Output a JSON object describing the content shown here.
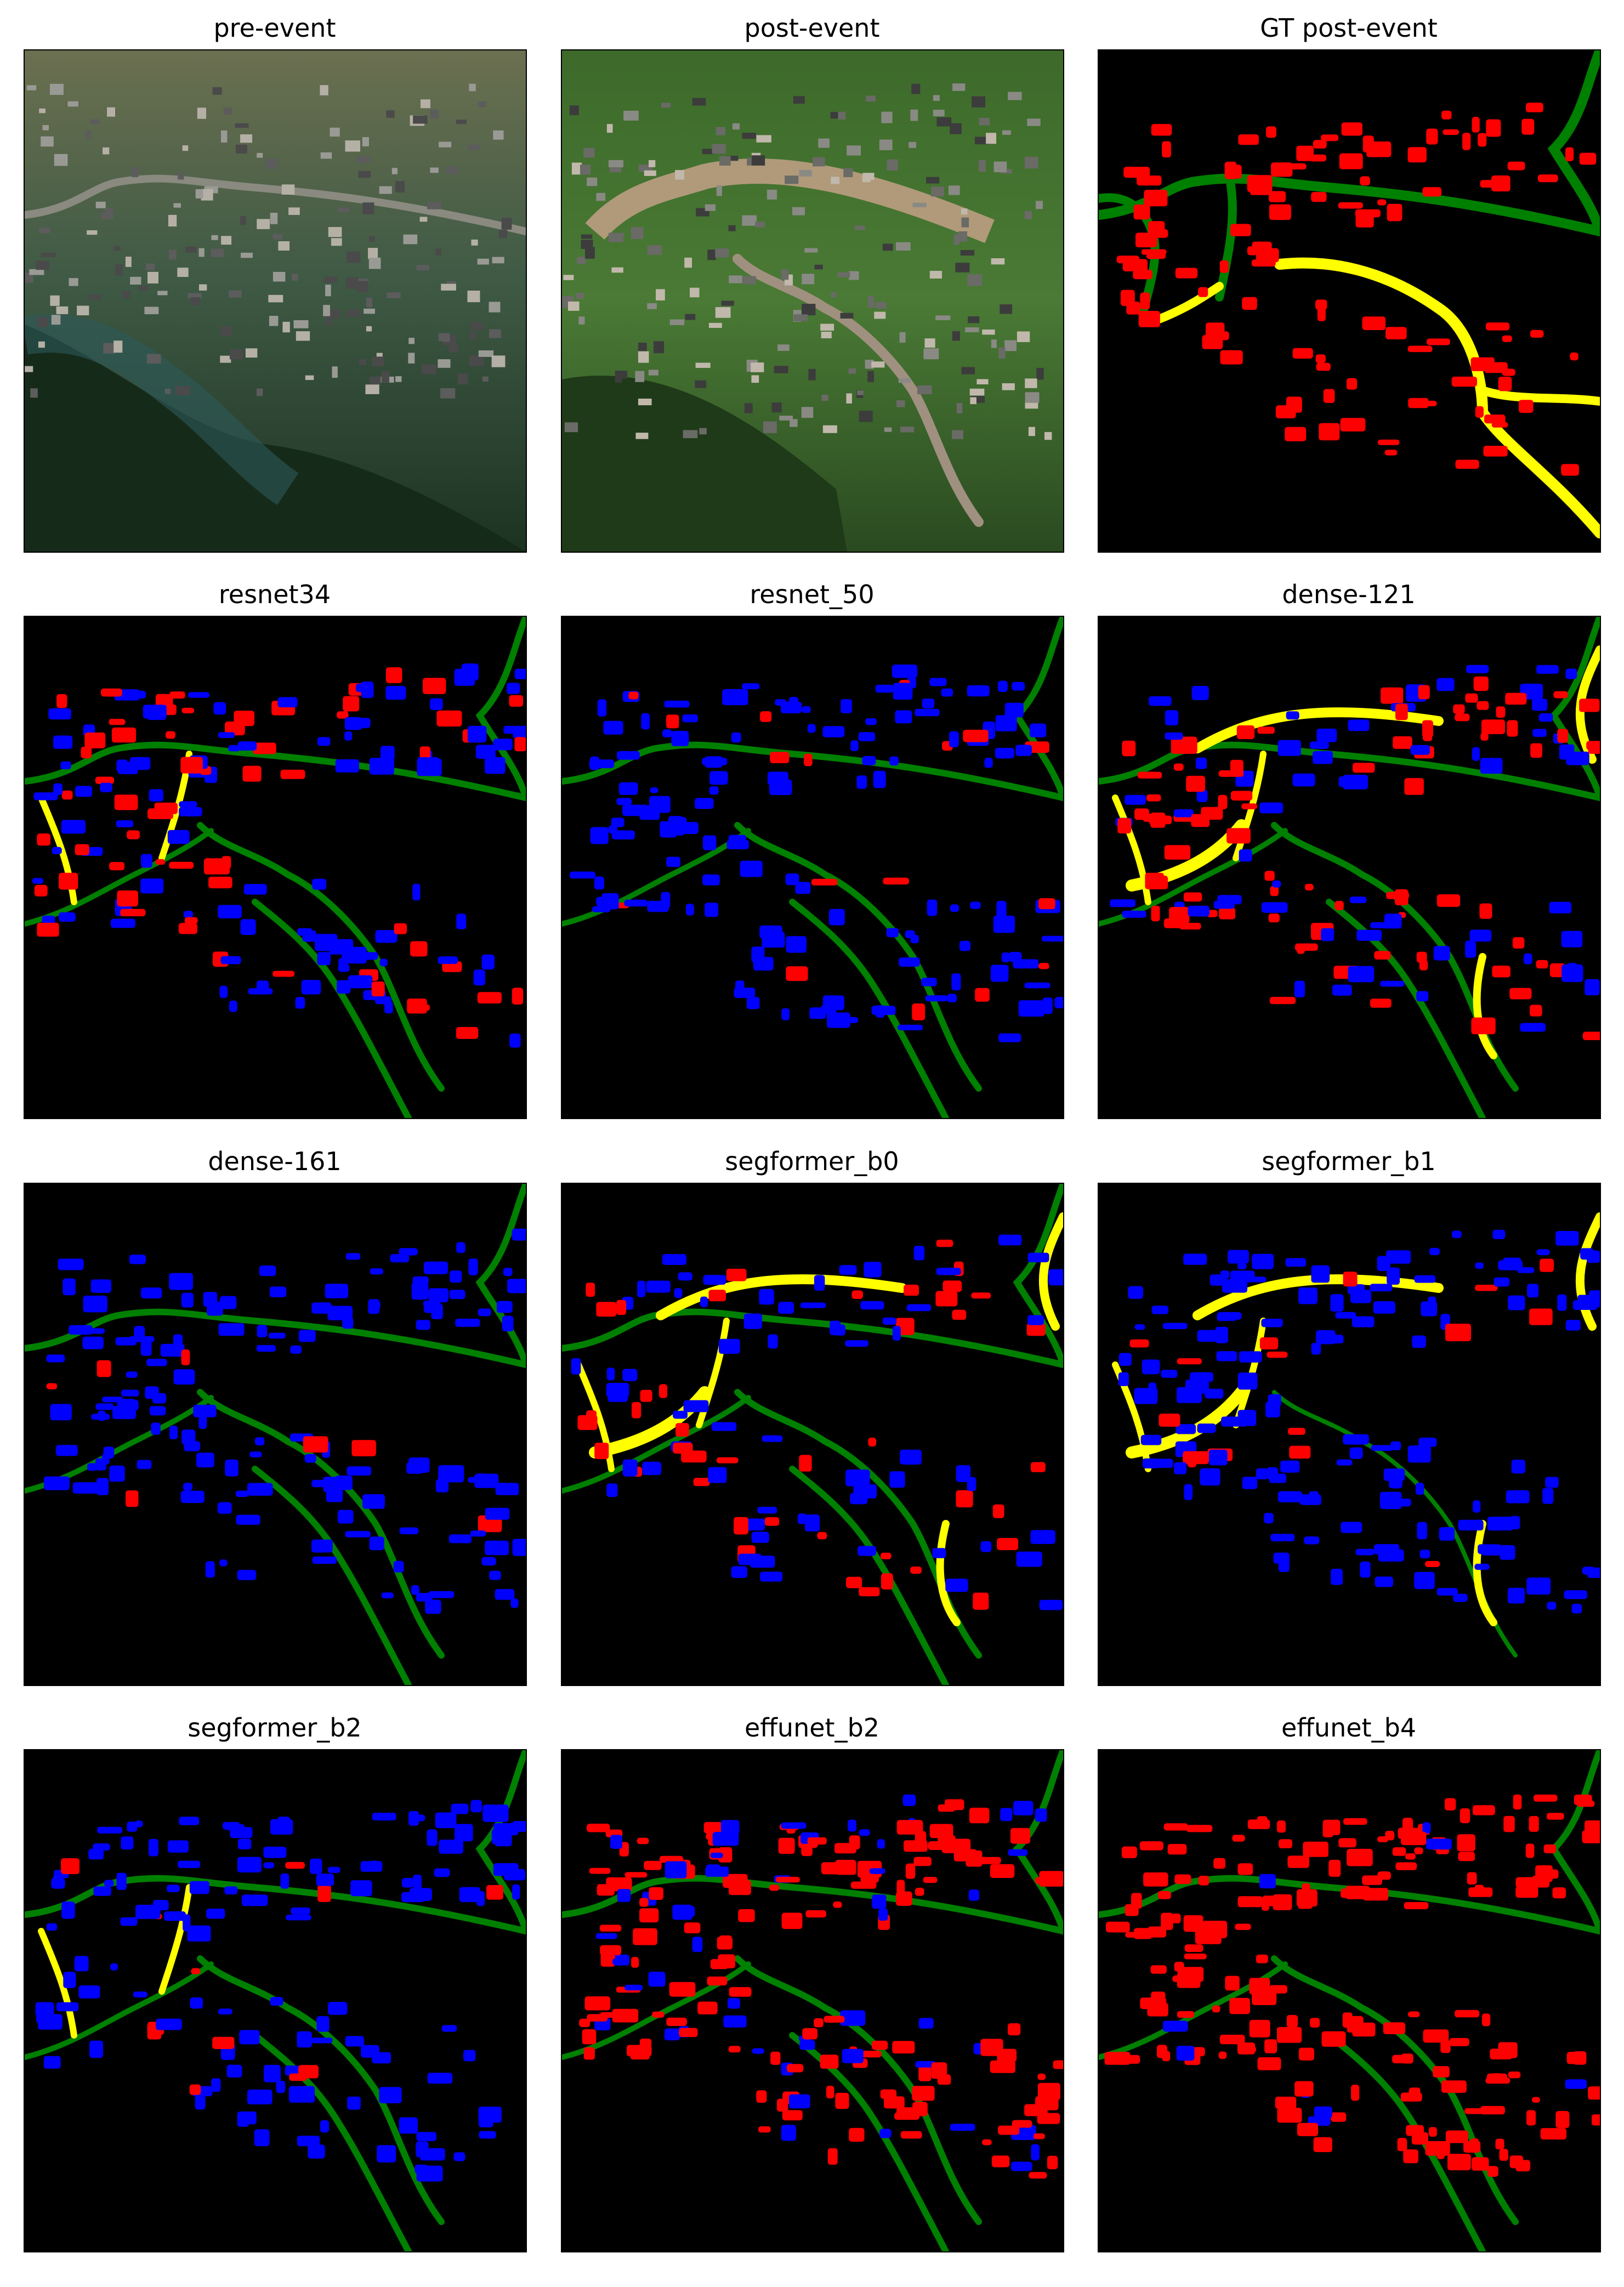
{
  "colors": {
    "background": "#000000",
    "building_no_damage": "#0000ff",
    "building_damaged": "#ff0000",
    "road_no_damage": "#008000",
    "road_damaged": "#ffff00"
  },
  "panels": [
    {
      "title": "pre-event",
      "kind": "photo-pre"
    },
    {
      "title": "post-event",
      "kind": "photo-post"
    },
    {
      "title": "GT post-event",
      "kind": "gt"
    },
    {
      "title": "resnet34",
      "kind": "pred"
    },
    {
      "title": "resnet_50",
      "kind": "pred"
    },
    {
      "title": "dense-121",
      "kind": "pred"
    },
    {
      "title": "dense-161",
      "kind": "pred"
    },
    {
      "title": "segformer_b0",
      "kind": "pred"
    },
    {
      "title": "segformer_b1",
      "kind": "pred"
    },
    {
      "title": "segformer_b2",
      "kind": "pred"
    },
    {
      "title": "effunet_b2",
      "kind": "pred"
    },
    {
      "title": "effunet_b4",
      "kind": "pred"
    }
  ]
}
